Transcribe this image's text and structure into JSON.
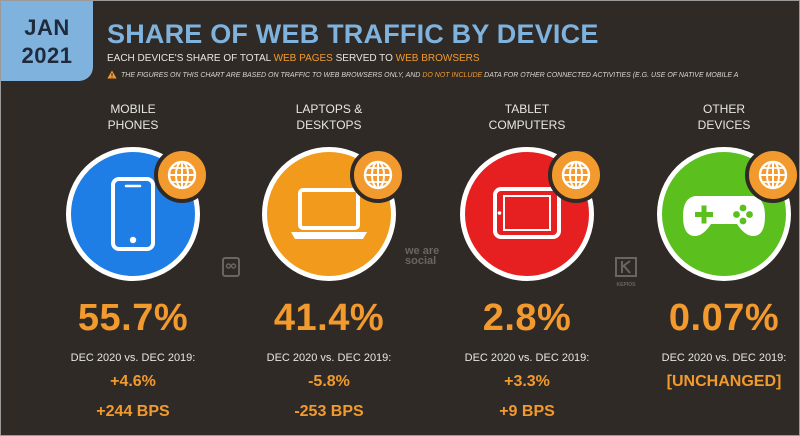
{
  "badge": {
    "month": "JAN",
    "year": "2021"
  },
  "title": "SHARE OF WEB TRAFFIC BY DEVICE",
  "subtitle": {
    "part1": "EACH DEVICE'S SHARE OF TOTAL ",
    "hl1": "WEB PAGES",
    "part2": " SERVED TO ",
    "hl2": "WEB BROWSERS"
  },
  "note": {
    "part1": "THE FIGURES ON THIS CHART ARE BASED ON TRAFFIC TO WEB BROWSERS ONLY, AND ",
    "hl": "DO NOT INCLUDE",
    "part2": " DATA FOR OTHER CONNECTED ACTIVITIES (E.G. USE OF NATIVE MOBILE A"
  },
  "devices": [
    {
      "label_line1": "MOBILE",
      "label_line2": "PHONES",
      "value": "55.7%",
      "comparison": "DEC 2020 vs. DEC 2019:",
      "change": "+4.6%",
      "bps": "+244 BPS",
      "color": "#1f7ee6",
      "icon": "mobile-phone-icon"
    },
    {
      "label_line1": "LAPTOPS &",
      "label_line2": "DESKTOPS",
      "value": "41.4%",
      "comparison": "DEC 2020 vs. DEC 2019:",
      "change": "-5.8%",
      "bps": "-253 BPS",
      "color": "#f29a1c",
      "icon": "laptop-icon"
    },
    {
      "label_line1": "TABLET",
      "label_line2": "COMPUTERS",
      "value": "2.8%",
      "comparison": "DEC 2020 vs. DEC 2019:",
      "change": "+3.3%",
      "bps": "+9 BPS",
      "color": "#e62020",
      "icon": "tablet-icon"
    },
    {
      "label_line1": "OTHER",
      "label_line2": "DEVICES",
      "value": "0.07%",
      "comparison": "DEC 2020 vs. DEC 2019:",
      "change": "[UNCHANGED]",
      "bps": "",
      "color": "#5bbf1e",
      "icon": "game-controller-icon"
    }
  ],
  "logos": {
    "wearesocial": "we are social",
    "kepios": "KEPIOS"
  },
  "colors": {
    "accent": "#f29a2e",
    "title": "#7fb3de",
    "background": "#2f2a26"
  }
}
